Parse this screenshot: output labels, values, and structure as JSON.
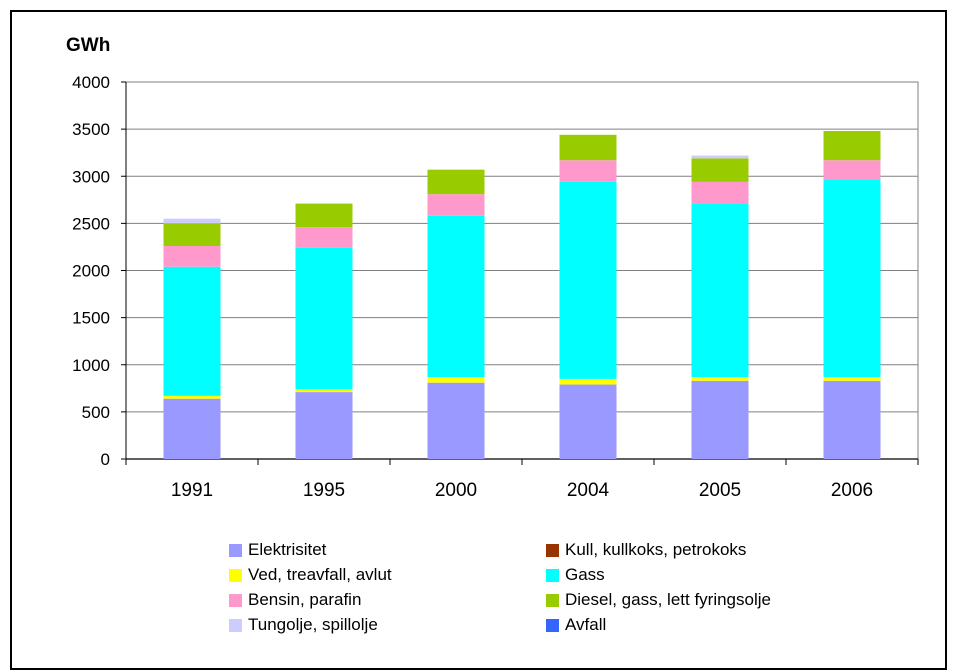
{
  "chart_data": {
    "type": "bar",
    "stacked": true,
    "unit_label": "GWh",
    "categories": [
      "1991",
      "1995",
      "2000",
      "2004",
      "2005",
      "2006"
    ],
    "ylim": [
      0,
      4000
    ],
    "yticks": [
      0,
      500,
      1000,
      1500,
      2000,
      2500,
      3000,
      3500,
      4000
    ],
    "grid": true,
    "legend_position": "bottom",
    "series": [
      {
        "name": "Elektrisitet",
        "color": "#9999ff",
        "values": [
          640,
          710,
          810,
          790,
          830,
          830
        ]
      },
      {
        "name": "Kull, kullkoks, petrokoks",
        "color": "#993300",
        "values": [
          0,
          0,
          0,
          0,
          0,
          0
        ]
      },
      {
        "name": "Ved, treavfall, avlut",
        "color": "#ffff00",
        "values": [
          30,
          30,
          60,
          60,
          40,
          40
        ]
      },
      {
        "name": "Gass",
        "color": "#00ffff",
        "values": [
          1370,
          1500,
          1710,
          2090,
          1840,
          2090
        ]
      },
      {
        "name": "Bensin, parafin",
        "color": "#ff99cc",
        "values": [
          220,
          220,
          230,
          230,
          230,
          210
        ]
      },
      {
        "name": "Diesel, gass, lett fyringsolje",
        "color": "#99cc00",
        "values": [
          240,
          250,
          260,
          270,
          250,
          310
        ]
      },
      {
        "name": "Tungolje, spillolje",
        "color": "#ccccff",
        "values": [
          50,
          0,
          0,
          0,
          30,
          0
        ]
      },
      {
        "name": "Avfall",
        "color": "#3366ff",
        "values": [
          0,
          0,
          0,
          0,
          0,
          0
        ]
      }
    ]
  }
}
